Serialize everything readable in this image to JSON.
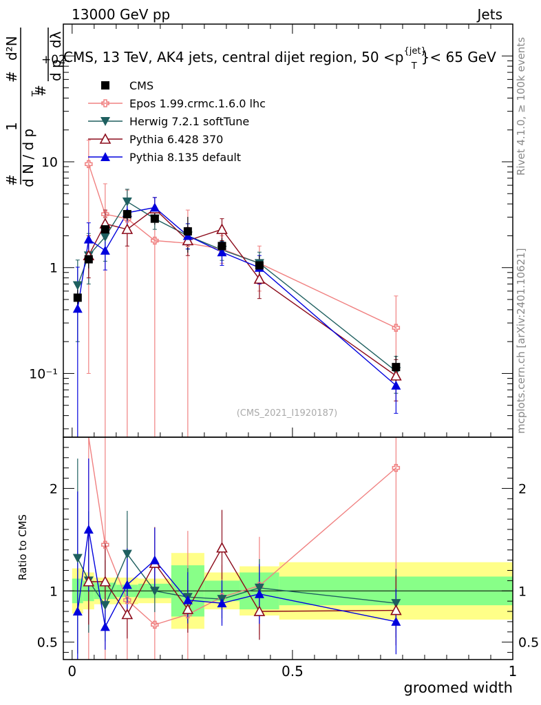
{
  "header": {
    "left": "13000 GeV pp",
    "right": "Jets"
  },
  "side_labels": {
    "rivet": "Rivet 4.1.0, ≥ 100k events",
    "mcplots": "mcplots.cern.ch [arXiv:2401.10621]"
  },
  "chart_data": {
    "type": "scatter",
    "title": "CMS, 13 TeV, AK4 jets, central dijet region, 50 <p",
    "title_sup": "{jet}",
    "title_sub": "T",
    "title_tail": "}< 65 GeV",
    "analysis_id": "(CMS_2021_I1920187)",
    "xlabel": "groomed width",
    "ylabel_top": {
      "hash1": "#",
      "one": "1",
      "dN_over": "d N / d p",
      "T": "T",
      "hash2": "#",
      "d2N": "d²N",
      "dpT_dlambda": "d p",
      "dlambda": "dλ",
      "pre": "#",
      "frac_tail": "+02"
    },
    "ylabel_ratio": "Ratio to CMS",
    "xlim": [
      -0.02,
      1.0
    ],
    "main_ylim": [
      0.025,
      200
    ],
    "ratio_ylim": [
      0.33,
      2.5
    ],
    "x_ticks": [
      0,
      0.5,
      1
    ],
    "x_tick_labels": [
      "0",
      "0.5",
      "1"
    ],
    "main_y_ticks": [
      {
        "v": 0.1,
        "label": "10⁻¹"
      },
      {
        "v": 1,
        "label": "1"
      },
      {
        "v": 10,
        "label": "10"
      },
      {
        "v": 100,
        "label": "10²"
      }
    ],
    "ratio_y_ticks": [
      {
        "v": 0.5,
        "label": "0.5"
      },
      {
        "v": 1,
        "label": "1"
      },
      {
        "v": 2,
        "label": "2"
      }
    ],
    "bins": [
      {
        "lo": 0.0,
        "hi": 0.025
      },
      {
        "lo": 0.025,
        "hi": 0.05
      },
      {
        "lo": 0.05,
        "hi": 0.1
      },
      {
        "lo": 0.1,
        "hi": 0.15
      },
      {
        "lo": 0.15,
        "hi": 0.225
      },
      {
        "lo": 0.225,
        "hi": 0.3
      },
      {
        "lo": 0.3,
        "hi": 0.38
      },
      {
        "lo": 0.38,
        "hi": 0.47
      },
      {
        "lo": 0.47,
        "hi": 1.0
      }
    ],
    "data": {
      "name": "CMS",
      "color": "#000000",
      "x": [
        0.0125,
        0.0375,
        0.075,
        0.125,
        0.1875,
        0.2625,
        0.34,
        0.425,
        0.735
      ],
      "y": [
        0.52,
        1.2,
        2.3,
        3.2,
        2.9,
        2.2,
        1.6,
        1.05,
        0.115
      ],
      "band_inner": [
        0.12,
        0.1,
        0.08,
        0.06,
        0.07,
        0.25,
        0.1,
        0.18,
        0.14
      ],
      "band_outer": [
        0.22,
        0.18,
        0.13,
        0.13,
        0.12,
        0.37,
        0.18,
        0.24,
        0.28
      ]
    },
    "series": [
      {
        "name": "Epos 1.99.crmc.1.6.0 lhc",
        "color": "#f08080",
        "marker": "cross",
        "y": [
          null,
          9.5,
          3.2,
          2.9,
          1.8,
          1.7,
          1.5,
          1.1,
          0.27
        ],
        "err_lo": [
          null,
          9.4,
          3.19,
          2.89,
          1.79,
          1.69,
          0.4,
          0.5,
          0.15
        ],
        "err_hi": [
          null,
          6.5,
          3.0,
          2.5,
          1.5,
          1.8,
          0.5,
          0.5,
          0.27
        ],
        "ratio": [
          null,
          7.9,
          1.45,
          0.91,
          0.67,
          0.77,
          0.94,
          1.05,
          2.2
        ]
      },
      {
        "name": "Herwig 7.2.1 softTune",
        "color": "#1e5f5f",
        "marker": "tri-down",
        "y": [
          0.68,
          1.3,
          1.95,
          4.2,
          2.9,
          2.0,
          1.47,
          1.1,
          0.105
        ],
        "err_lo": [
          0.48,
          0.6,
          0.8,
          1.0,
          0.6,
          0.5,
          0.3,
          0.3,
          0.04
        ],
        "err_hi": [
          0.5,
          0.8,
          1.0,
          1.3,
          0.8,
          0.6,
          0.3,
          0.3,
          0.04
        ],
        "ratio": [
          1.32,
          1.1,
          0.86,
          1.36,
          1.0,
          0.94,
          0.92,
          1.03,
          0.88
        ]
      },
      {
        "name": "Pythia 6.428 370",
        "color": "#8b0a1a",
        "marker": "tri-up-open",
        "y": [
          null,
          1.3,
          2.6,
          2.3,
          3.6,
          1.8,
          2.3,
          0.78,
          0.095
        ],
        "err_lo": [
          null,
          0.5,
          0.7,
          0.7,
          0.8,
          0.5,
          0.5,
          0.27,
          0.04
        ],
        "err_hi": [
          null,
          0.7,
          0.9,
          1.0,
          1.0,
          0.6,
          0.6,
          0.27,
          0.04
        ],
        "ratio": [
          null,
          1.09,
          1.09,
          0.77,
          1.27,
          0.82,
          1.42,
          0.8,
          0.81
        ]
      },
      {
        "name": "Pythia 8.135 default",
        "color": "#0000dd",
        "marker": "tri-up",
        "y": [
          0.41,
          1.85,
          1.45,
          3.3,
          3.7,
          2.0,
          1.4,
          1.0,
          0.077
        ],
        "err_lo": [
          0.4,
          0.7,
          0.5,
          1.0,
          0.8,
          0.5,
          0.35,
          0.3,
          0.035
        ],
        "err_hi": [
          0.6,
          0.8,
          0.6,
          1.1,
          0.9,
          0.6,
          0.35,
          0.3,
          0.035
        ],
        "ratio": [
          0.8,
          1.6,
          0.65,
          1.06,
          1.3,
          0.91,
          0.88,
          0.97,
          0.7
        ]
      }
    ]
  }
}
